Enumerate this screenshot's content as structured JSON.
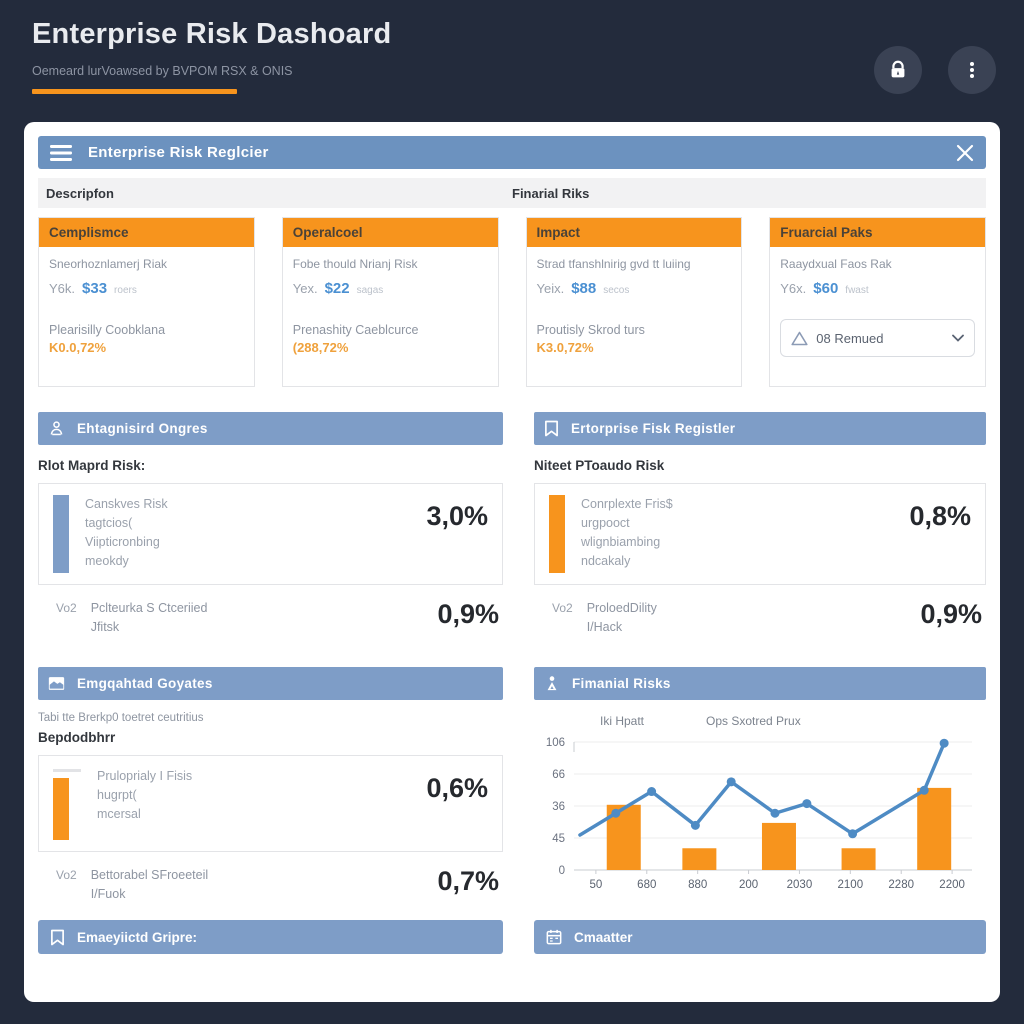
{
  "header": {
    "title": "Enterprise Risk Dashoard",
    "subtitle": "Oemeard lurVoawsed by BVPOM RSX & ONIS"
  },
  "panel": {
    "titlebar_title": "Enterprise Risk Reglcier",
    "subrow_left": "Descripfon",
    "subrow_right": "Finarial Riks"
  },
  "risk_cards": [
    {
      "header": "Cemplismce",
      "line1": "Sneorhoznlamerj Riak",
      "metric_label": "Y6k.",
      "metric_value": "$33",
      "metric_unit": "roers",
      "prob_label": "Plearisilly Coobklana",
      "prob_value": "K0.0,72%"
    },
    {
      "header": "Operalcoel",
      "line1": "Fobe thould Nrianj Risk",
      "metric_label": "Yex.",
      "metric_value": "$22",
      "metric_unit": "sagas",
      "prob_label": "Prenashity Caeblcurce",
      "prob_value": "(288,72%"
    },
    {
      "header": "Impact",
      "line1": "Strad tfanshlnirig gvd tt luiing",
      "metric_label": "Yeix.",
      "metric_value": "$88",
      "metric_unit": "secos",
      "prob_label": "Proutisly Skrod turs",
      "prob_value": "K3.0,72%"
    },
    {
      "header": "Fruarcial Paks",
      "line1": "Raaydxual Faos Rak",
      "metric_label": "Y6x.",
      "metric_value": "$60",
      "metric_unit": "fwast",
      "dropdown_value": "08 Remued"
    }
  ],
  "sections": {
    "ongres": {
      "title": "Ehtagnisird Ongres",
      "subtitle": "Rlot Maprd Risk:",
      "item": {
        "lines": [
          "Canskves Risk",
          "tagtcios(",
          "Viipticronbing",
          "meokdy"
        ],
        "value": "3,0%"
      },
      "footer": {
        "label": "Vo2",
        "lines": [
          "Pclteurka S Ctceriied",
          "Jfitsk"
        ],
        "value": "0,9%"
      }
    },
    "register": {
      "title": "Ertorprise Fisk Registler",
      "subtitle": "Niteet PToaudo Risk",
      "item": {
        "lines": [
          "Conrplexte Fris$",
          "urgpooct",
          "wlignbiambing",
          "ndcakaly"
        ],
        "value": "0,8%"
      },
      "footer": {
        "label": "Vo2",
        "lines": [
          "ProloedDility",
          "I/Hack"
        ],
        "value": "0,9%"
      }
    },
    "goyates": {
      "title": "Emgqahtad Goyates",
      "note": "Tabi tte Brerkp0 toetret ceutritius",
      "subtitle": "Bepdodbhrr",
      "item": {
        "lines": [
          "Pruloprialy I Fisis",
          "hugrpt(",
          "mcersal"
        ],
        "value": "0,6%"
      },
      "footer": {
        "label": "Vo2",
        "lines": [
          "Bettorabel SFroeeteil",
          "I/Fuok"
        ],
        "value": "0,7%"
      }
    },
    "financial": {
      "title": "Fimanial Risks"
    }
  },
  "footer_bars": {
    "left": "Emaeyiictd Gripre:",
    "right": "Cmaatter"
  },
  "colors": {
    "accent_orange": "#F7941D",
    "titlebar_blue": "#6C92BF",
    "section_blue": "#7E9DC7",
    "value_blue": "#4B90D2",
    "background_dark": "#232B3C"
  },
  "icons": [
    "lock-icon",
    "kebab-menu-icon",
    "hamburger-icon",
    "close-icon",
    "person-icon",
    "bookmark-icon",
    "image-icon",
    "analytics-person-icon",
    "calendar-icon",
    "warning-triangle-icon",
    "chevron-down-icon"
  ],
  "chart_data": {
    "type": "bar",
    "title": "Fimanial Risks",
    "legend": [
      "Iki Hpatt",
      "Ops Sxotred Prux"
    ],
    "legend_position": "top",
    "grid": true,
    "ylim": [
      0,
      106
    ],
    "y_tick_labels_bottom_to_top": [
      "0",
      "45",
      "36",
      "66",
      "106"
    ],
    "x_tick_labels": [
      "50",
      "680",
      "880",
      "200",
      "2030",
      "2100",
      "2280",
      "2200"
    ],
    "series": [
      {
        "name": "Iki Hpatt",
        "type": "bar",
        "color": "#F7941D",
        "x_frac": [
          0.125,
          0.315,
          0.515,
          0.715,
          0.905
        ],
        "values": [
          54,
          18,
          39,
          18,
          68
        ]
      },
      {
        "name": "Ops Sxotred Prux",
        "type": "line",
        "color": "#4E8BC4",
        "points": [
          {
            "x": 0.015,
            "y": 29
          },
          {
            "x": 0.105,
            "y": 47
          },
          {
            "x": 0.195,
            "y": 65
          },
          {
            "x": 0.305,
            "y": 37
          },
          {
            "x": 0.395,
            "y": 73
          },
          {
            "x": 0.505,
            "y": 47
          },
          {
            "x": 0.585,
            "y": 55
          },
          {
            "x": 0.7,
            "y": 30
          },
          {
            "x": 0.88,
            "y": 66
          },
          {
            "x": 0.93,
            "y": 105
          }
        ]
      }
    ]
  }
}
